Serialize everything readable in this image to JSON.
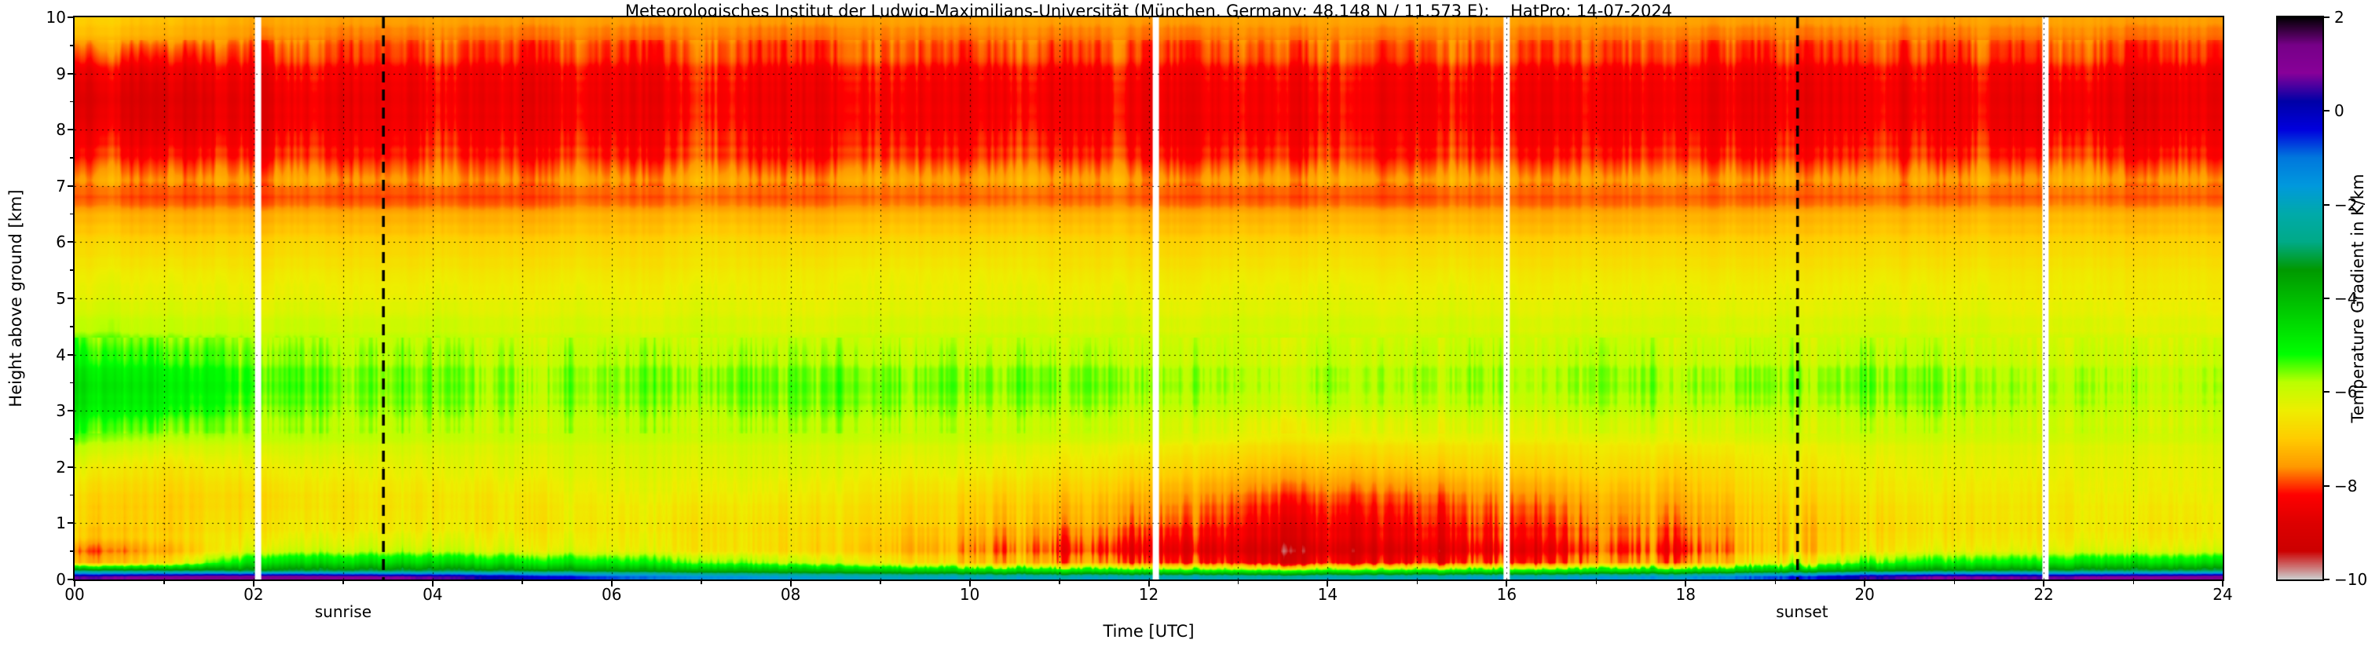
{
  "title": "Meteorologisches Institut der Ludwig-Maximilians-Universität (München, Germany; 48.148 N / 11.573 E):    HatPro: 14-07-2024",
  "axes": {
    "x_label": "Time [UTC]",
    "y_label": "Height above ground [km]",
    "x_ticks": [
      "00",
      "02",
      "04",
      "06",
      "08",
      "10",
      "12",
      "14",
      "16",
      "18",
      "20",
      "22",
      "24"
    ],
    "x_tick_hours": [
      0,
      2,
      4,
      6,
      8,
      10,
      12,
      14,
      16,
      18,
      20,
      22,
      24
    ],
    "y_ticks": [
      "0",
      "1",
      "2",
      "3",
      "4",
      "5",
      "6",
      "7",
      "8",
      "9",
      "10"
    ],
    "y_tick_km": [
      0,
      1,
      2,
      3,
      4,
      5,
      6,
      7,
      8,
      9,
      10
    ],
    "x_range": [
      0,
      24
    ],
    "y_range": [
      0,
      10
    ],
    "grid": "dotted, hourly vertical and 1-km horizontal"
  },
  "colorbar": {
    "label": "Temperature Gradient in K/km",
    "tick_labels": [
      "2",
      "0",
      "−2",
      "−4",
      "−6",
      "−8",
      "−10"
    ],
    "tick_values": [
      2,
      0,
      -2,
      -4,
      -6,
      -8,
      -10
    ],
    "min": -10,
    "max": 2,
    "stops": [
      [
        2.0,
        "#000000"
      ],
      [
        1.4,
        "#770088"
      ],
      [
        0.8,
        "#880099"
      ],
      [
        0.2,
        "#0000A7"
      ],
      [
        -0.4,
        "#0000DD"
      ],
      [
        -1.0,
        "#0077DD"
      ],
      [
        -1.6,
        "#0099DD"
      ],
      [
        -2.2,
        "#00AAAA"
      ],
      [
        -2.8,
        "#00AA88"
      ],
      [
        -3.4,
        "#009900"
      ],
      [
        -4.0,
        "#00BB00"
      ],
      [
        -4.6,
        "#00DD00"
      ],
      [
        -5.2,
        "#00FF00"
      ],
      [
        -5.8,
        "#BBFF00"
      ],
      [
        -6.4,
        "#EEEE00"
      ],
      [
        -7.0,
        "#FFCC00"
      ],
      [
        -7.6,
        "#FF9900"
      ],
      [
        -8.2,
        "#FF0000"
      ],
      [
        -8.8,
        "#DD0000"
      ],
      [
        -9.4,
        "#CC0000"
      ],
      [
        -10.0,
        "#CCCCCC"
      ]
    ]
  },
  "annotations": {
    "sunrise": {
      "label": "sunrise",
      "time": 3.45,
      "label_time": 3.0
    },
    "sunset": {
      "label": "sunset",
      "time": 19.25,
      "label_time": 19.3
    }
  },
  "data_gap_times": [
    2.05,
    12.08,
    16.0,
    22.02
  ],
  "chart_data": {
    "type": "heatmap",
    "title": "Meteorologisches Institut der Ludwig-Maximilians-Universität (München, Germany; 48.148 N / 11.573 E):    HatPro: 14-07-2024",
    "xlabel": "Time [UTC]",
    "ylabel": "Height above ground [km]",
    "zlabel": "Temperature Gradient in K/km",
    "xlim": [
      0,
      24
    ],
    "ylim": [
      0,
      10
    ],
    "zlim": [
      -10,
      2
    ],
    "x": [
      0,
      1,
      2,
      3,
      4,
      5,
      6,
      7,
      8,
      9,
      10,
      11,
      12,
      13,
      14,
      15,
      16,
      17,
      18,
      19,
      20,
      21,
      22,
      23,
      24
    ],
    "y": [
      0.05,
      0.15,
      0.3,
      0.5,
      0.75,
      1.0,
      1.5,
      2.0,
      2.5,
      3.0,
      3.5,
      4.0,
      4.5,
      5.0,
      5.5,
      6.0,
      6.5,
      6.8,
      7.1,
      7.5,
      8.0,
      8.5,
      9.0,
      9.3,
      9.7,
      10.0
    ],
    "values": [
      [
        0.5,
        1.0,
        1.2,
        1.0,
        0.6,
        0.0,
        -0.8,
        -1.4,
        -1.8,
        -2.0,
        -2.0,
        -2.1,
        -2.1,
        -2.2,
        -2.2,
        -2.1,
        -2.0,
        -1.9,
        -1.6,
        -0.8,
        0.3,
        0.8,
        0.6,
        0.9,
        1.1
      ],
      [
        -2.8,
        -2.9,
        -3.1,
        -3.0,
        -3.0,
        -3.1,
        -3.4,
        -3.7,
        -3.9,
        -4.1,
        -4.3,
        -4.6,
        -4.8,
        -5.0,
        -5.0,
        -4.9,
        -4.8,
        -4.7,
        -4.4,
        -3.9,
        -3.4,
        -3.1,
        -3.0,
        -2.9,
        -2.9
      ],
      [
        -7.4,
        -6.8,
        -4.6,
        -4.5,
        -4.5,
        -4.7,
        -5.0,
        -5.4,
        -5.9,
        -6.4,
        -6.9,
        -7.4,
        -7.9,
        -8.2,
        -8.4,
        -8.2,
        -8.0,
        -7.8,
        -7.4,
        -6.4,
        -5.4,
        -5.0,
        -4.8,
        -4.6,
        -4.6
      ],
      [
        -7.9,
        -7.4,
        -6.0,
        -5.8,
        -5.8,
        -6.0,
        -6.2,
        -6.4,
        -6.7,
        -7.0,
        -7.4,
        -7.9,
        -8.4,
        -8.7,
        -8.9,
        -8.7,
        -8.5,
        -8.2,
        -7.9,
        -7.0,
        -6.5,
        -6.2,
        -6.1,
        -6.0,
        -6.0
      ],
      [
        -7.1,
        -7.0,
        -6.5,
        -6.3,
        -6.3,
        -6.4,
        -6.5,
        -6.6,
        -6.8,
        -7.0,
        -7.3,
        -7.7,
        -8.1,
        -8.4,
        -8.6,
        -8.4,
        -8.2,
        -8.0,
        -7.7,
        -7.1,
        -6.8,
        -6.6,
        -6.5,
        -6.5,
        -6.5
      ],
      [
        -6.9,
        -7.0,
        -6.6,
        -6.5,
        -6.5,
        -6.5,
        -6.5,
        -6.6,
        -6.7,
        -6.8,
        -7.0,
        -7.3,
        -7.7,
        -8.1,
        -8.4,
        -8.2,
        -8.0,
        -7.8,
        -7.5,
        -7.0,
        -6.8,
        -6.6,
        -6.5,
        -6.5,
        -6.5
      ],
      [
        -6.8,
        -7.0,
        -6.8,
        -6.6,
        -6.6,
        -6.5,
        -6.4,
        -6.4,
        -6.5,
        -6.6,
        -6.8,
        -7.0,
        -7.3,
        -7.7,
        -7.9,
        -7.8,
        -7.6,
        -7.4,
        -7.2,
        -6.8,
        -6.6,
        -6.5,
        -6.5,
        -6.4,
        -6.4
      ],
      [
        -6.3,
        -6.6,
        -6.4,
        -6.3,
        -6.3,
        -6.2,
        -6.2,
        -6.2,
        -6.2,
        -6.3,
        -6.3,
        -6.5,
        -6.7,
        -7.0,
        -7.1,
        -7.0,
        -6.9,
        -6.8,
        -6.8,
        -6.5,
        -6.4,
        -6.3,
        -6.3,
        -6.3,
        -6.3
      ],
      [
        -5.6,
        -5.9,
        -5.9,
        -5.9,
        -6.0,
        -6.0,
        -6.0,
        -6.0,
        -6.0,
        -6.0,
        -6.0,
        -6.1,
        -6.2,
        -6.4,
        -6.5,
        -6.4,
        -6.4,
        -6.4,
        -6.3,
        -6.2,
        -6.1,
        -6.1,
        -6.1,
        -6.1,
        -6.1
      ],
      [
        -4.8,
        -5.1,
        -5.5,
        -5.6,
        -5.6,
        -5.7,
        -5.7,
        -5.7,
        -5.6,
        -5.6,
        -5.7,
        -5.7,
        -5.8,
        -5.9,
        -5.9,
        -5.9,
        -5.9,
        -5.9,
        -5.8,
        -5.8,
        -5.7,
        -5.7,
        -5.8,
        -5.9,
        -5.9
      ],
      [
        -4.6,
        -4.9,
        -5.3,
        -5.5,
        -5.5,
        -5.6,
        -5.6,
        -5.5,
        -5.5,
        -5.5,
        -5.5,
        -5.5,
        -5.6,
        -5.7,
        -5.7,
        -5.7,
        -5.7,
        -5.7,
        -5.6,
        -5.6,
        -5.5,
        -5.6,
        -5.7,
        -5.8,
        -5.8
      ],
      [
        -5.2,
        -5.4,
        -5.6,
        -5.7,
        -5.7,
        -5.8,
        -5.8,
        -5.8,
        -5.8,
        -5.8,
        -5.8,
        -5.8,
        -5.9,
        -5.9,
        -5.9,
        -5.9,
        -5.9,
        -5.9,
        -5.9,
        -5.9,
        -5.8,
        -5.9,
        -6.0,
        -6.0,
        -6.0
      ],
      [
        -5.8,
        -5.9,
        -6.0,
        -6.0,
        -6.0,
        -6.1,
        -6.1,
        -6.1,
        -6.1,
        -6.1,
        -6.1,
        -6.1,
        -6.1,
        -6.1,
        -6.1,
        -6.1,
        -6.1,
        -6.1,
        -6.1,
        -6.1,
        -6.1,
        -6.1,
        -6.2,
        -6.2,
        -6.2
      ],
      [
        -6.2,
        -6.2,
        -6.3,
        -6.3,
        -6.3,
        -6.3,
        -6.3,
        -6.3,
        -6.3,
        -6.3,
        -6.3,
        -6.3,
        -6.3,
        -6.3,
        -6.3,
        -6.3,
        -6.3,
        -6.3,
        -6.3,
        -6.3,
        -6.3,
        -6.3,
        -6.4,
        -6.4,
        -6.4
      ],
      [
        -6.5,
        -6.5,
        -6.6,
        -6.6,
        -6.6,
        -6.6,
        -6.6,
        -6.6,
        -6.5,
        -6.5,
        -6.5,
        -6.6,
        -6.6,
        -6.6,
        -6.6,
        -6.6,
        -6.6,
        -6.6,
        -6.6,
        -6.6,
        -6.6,
        -6.6,
        -6.6,
        -6.6,
        -6.6
      ],
      [
        -6.8,
        -6.9,
        -6.9,
        -6.9,
        -6.9,
        -6.9,
        -6.9,
        -6.8,
        -6.8,
        -6.8,
        -6.8,
        -6.8,
        -6.9,
        -6.9,
        -6.9,
        -6.9,
        -6.9,
        -6.9,
        -6.9,
        -6.9,
        -6.9,
        -6.9,
        -6.9,
        -6.9,
        -6.9
      ],
      [
        -7.3,
        -7.4,
        -7.4,
        -7.4,
        -7.4,
        -7.4,
        -7.3,
        -7.3,
        -7.3,
        -7.3,
        -7.3,
        -7.3,
        -7.3,
        -7.4,
        -7.4,
        -7.4,
        -7.4,
        -7.4,
        -7.4,
        -7.3,
        -7.3,
        -7.3,
        -7.3,
        -7.3,
        -7.3
      ],
      [
        -7.9,
        -8.0,
        -8.0,
        -8.0,
        -8.0,
        -8.0,
        -7.9,
        -7.9,
        -7.9,
        -7.9,
        -7.9,
        -7.9,
        -7.9,
        -8.0,
        -8.0,
        -8.0,
        -7.9,
        -7.9,
        -7.9,
        -7.9,
        -7.9,
        -7.9,
        -7.9,
        -7.9,
        -7.9
      ],
      [
        -7.5,
        -7.6,
        -7.6,
        -7.6,
        -7.6,
        -7.6,
        -7.5,
        -7.5,
        -7.5,
        -7.5,
        -7.5,
        -7.5,
        -7.5,
        -7.6,
        -7.6,
        -7.6,
        -7.5,
        -7.5,
        -7.5,
        -7.5,
        -7.5,
        -7.5,
        -7.5,
        -7.5,
        -7.5
      ],
      [
        -8.0,
        -8.1,
        -8.1,
        -8.1,
        -8.0,
        -8.0,
        -8.0,
        -8.0,
        -8.0,
        -8.0,
        -8.0,
        -8.0,
        -8.0,
        -8.1,
        -8.1,
        -8.1,
        -8.0,
        -8.0,
        -8.0,
        -8.0,
        -8.0,
        -8.0,
        -8.0,
        -8.0,
        -8.0
      ],
      [
        -8.4,
        -8.6,
        -8.5,
        -8.4,
        -8.3,
        -8.3,
        -8.3,
        -8.2,
        -8.2,
        -8.3,
        -8.3,
        -8.3,
        -8.3,
        -8.4,
        -8.4,
        -8.3,
        -8.3,
        -8.3,
        -8.3,
        -8.3,
        -8.3,
        -8.3,
        -8.4,
        -8.4,
        -8.3
      ],
      [
        -8.7,
        -8.8,
        -8.6,
        -8.5,
        -8.4,
        -8.4,
        -8.4,
        -8.3,
        -8.3,
        -8.3,
        -8.4,
        -8.4,
        -8.3,
        -8.4,
        -8.4,
        -8.4,
        -8.3,
        -8.3,
        -8.4,
        -8.4,
        -8.4,
        -8.4,
        -8.5,
        -8.5,
        -8.4
      ],
      [
        -8.4,
        -8.5,
        -8.4,
        -8.3,
        -8.3,
        -8.3,
        -8.3,
        -8.2,
        -8.2,
        -8.2,
        -8.3,
        -8.3,
        -8.2,
        -8.3,
        -8.3,
        -8.3,
        -8.2,
        -8.2,
        -8.3,
        -8.3,
        -8.3,
        -8.3,
        -8.3,
        -8.3,
        -8.3
      ],
      [
        -7.9,
        -8.1,
        -8.1,
        -8.0,
        -8.0,
        -8.0,
        -8.0,
        -8.0,
        -7.9,
        -7.9,
        -8.0,
        -8.0,
        -7.9,
        -8.0,
        -8.0,
        -8.0,
        -7.9,
        -7.9,
        -8.0,
        -8.0,
        -8.0,
        -8.0,
        -8.0,
        -8.0,
        -8.0
      ],
      [
        -7.1,
        -7.3,
        -7.6,
        -7.7,
        -7.7,
        -7.7,
        -7.7,
        -7.7,
        -7.7,
        -7.7,
        -7.7,
        -7.7,
        -7.7,
        -7.7,
        -7.7,
        -7.7,
        -7.7,
        -7.7,
        -7.7,
        -7.7,
        -7.7,
        -7.7,
        -7.7,
        -7.7,
        -7.7
      ],
      [
        -6.9,
        -7.1,
        -7.4,
        -7.5,
        -7.5,
        -7.5,
        -7.5,
        -7.5,
        -7.5,
        -7.5,
        -7.5,
        -7.5,
        -7.5,
        -7.5,
        -7.5,
        -7.5,
        -7.5,
        -7.5,
        -7.5,
        -7.5,
        -7.5,
        -7.5,
        -7.5,
        -7.5,
        -7.5
      ]
    ]
  }
}
